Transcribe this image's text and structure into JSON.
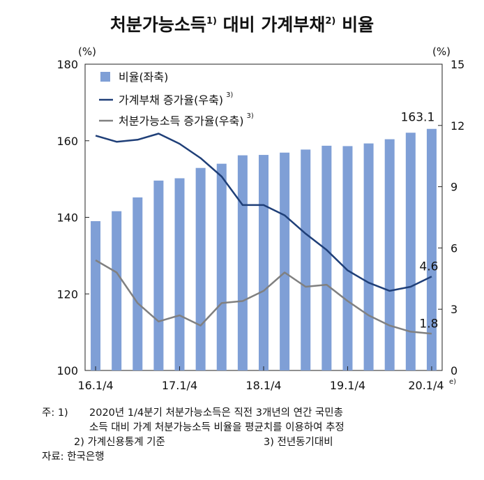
{
  "chart_data": {
    "type": "bar+line",
    "title": {
      "part1": "처분가능소득",
      "sup1": "1)",
      "part2": " 대비  가계부채",
      "sup2": "2)",
      "part3": " 비율"
    },
    "left_unit": "(%)",
    "right_unit": "(%)",
    "ylim_left": [
      100,
      180
    ],
    "yticks_left": [
      "100",
      "120",
      "140",
      "160",
      "180"
    ],
    "ylim_right": [
      0,
      15
    ],
    "yticks_right": [
      "0",
      "3",
      "6",
      "9",
      "12",
      "15"
    ],
    "x_tick_labels": [
      "16.1/4",
      "17.1/4",
      "18.1/4",
      "19.1/4",
      "20.1/4"
    ],
    "x_last_sup": "e)",
    "categories": [
      "16.1/4",
      "16.2/4",
      "16.3/4",
      "16.4/4",
      "17.1/4",
      "17.2/4",
      "17.3/4",
      "17.4/4",
      "18.1/4",
      "18.2/4",
      "18.3/4",
      "18.4/4",
      "19.1/4",
      "19.2/4",
      "19.3/4",
      "19.4/4",
      "20.1/4"
    ],
    "bars": {
      "name": "비율(좌축)",
      "color": "#7f9fd6",
      "values": [
        139.0,
        141.6,
        145.2,
        149.6,
        150.2,
        152.9,
        154.0,
        156.2,
        156.3,
        156.9,
        157.7,
        158.7,
        158.6,
        159.3,
        160.4,
        162.1,
        163.1
      ]
    },
    "lines": [
      {
        "name": "가계부채 증가율(우축)",
        "sup": "3)",
        "color": "#1f3f78",
        "values": [
          11.5,
          11.2,
          11.3,
          11.6,
          11.1,
          10.4,
          9.5,
          8.1,
          8.1,
          7.6,
          6.7,
          5.9,
          4.9,
          4.3,
          3.9,
          4.1,
          4.6
        ]
      },
      {
        "name": "처분가능소득 증가율(우축)",
        "sup": "3)",
        "color": "#808080",
        "values": [
          5.4,
          4.8,
          3.3,
          2.4,
          2.7,
          2.2,
          3.3,
          3.4,
          3.9,
          4.8,
          4.1,
          4.2,
          3.4,
          2.7,
          2.2,
          1.9,
          1.8
        ]
      }
    ],
    "annotations": {
      "bar_last": "163.1",
      "line1_last": "4.6",
      "line2_last": "1.8"
    }
  },
  "notes": {
    "line1_prefix": "주: 1)",
    "line1": "2020년  1/4분기  처분가능소득은  직전  3개년의  연간  국민총",
    "line2": "소득  대비  가계  처분가능소득  비율을  평균치를  이용하여  추정",
    "line3a": "2) 가계신용통계  기준",
    "line3b": "3) 전년동기대비",
    "line4": "자료:  한국은행"
  }
}
